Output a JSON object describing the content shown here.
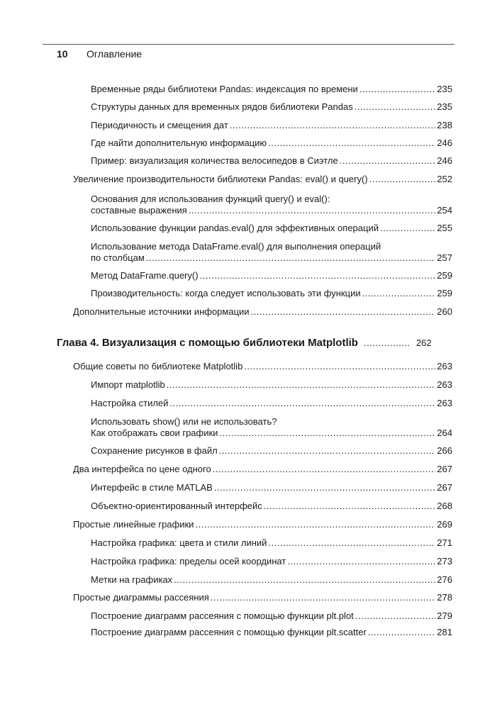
{
  "header": {
    "page_number": "10",
    "running_title": "Оглавление"
  },
  "toc": [
    {
      "level": 2,
      "lines": [
        "Временные ряды библиотеки Pandas: индексация по времени"
      ],
      "page": "235"
    },
    {
      "level": 2,
      "lines": [
        "Структуры данных для временных рядов библиотеки Pandas"
      ],
      "page": "235"
    },
    {
      "level": 2,
      "lines": [
        "Периодичность и смещения дат"
      ],
      "page": "238"
    },
    {
      "level": 2,
      "lines": [
        "Где найти дополнительную информацию"
      ],
      "page": "246"
    },
    {
      "level": 2,
      "lines": [
        "Пример: визуализация количества велосипедов в Сиэтле"
      ],
      "page": "246"
    },
    {
      "level": 1,
      "lines": [
        "Увеличение производительности библиотеки Pandas: eval() и query()"
      ],
      "page": "252"
    },
    {
      "level": 2,
      "lines": [
        "Основания для использования функций query() и eval():",
        "составные выражения"
      ],
      "page": "254"
    },
    {
      "level": 2,
      "lines": [
        "Использование функции pandas.eval() для эффективных операций"
      ],
      "page": "255"
    },
    {
      "level": 2,
      "lines": [
        "Использование метода DataFrame.eval() для выполнения операций",
        "по столбцам"
      ],
      "page": "257"
    },
    {
      "level": 2,
      "lines": [
        "Метод DataFrame.query()"
      ],
      "page": "259"
    },
    {
      "level": 2,
      "lines": [
        "Производительность: когда следует использовать эти функции"
      ],
      "page": "259"
    },
    {
      "level": 1,
      "lines": [
        "Дополнительные источники информации"
      ],
      "page": "260"
    },
    {
      "level": 0,
      "lines": [
        "Глава 4. Визуализация с помощью библиотеки Matplotlib"
      ],
      "page": "262"
    },
    {
      "level": 1,
      "lines": [
        "Общие советы по библиотеке Matplotlib"
      ],
      "page": "263"
    },
    {
      "level": 2,
      "lines": [
        "Импорт matplotlib"
      ],
      "page": "263"
    },
    {
      "level": 2,
      "lines": [
        "Настройка стилей"
      ],
      "page": "263"
    },
    {
      "level": 2,
      "lines": [
        "Использовать show() или не использовать?",
        "Как отображать свои графики"
      ],
      "page": "264"
    },
    {
      "level": 2,
      "lines": [
        "Сохранение рисунков в файл"
      ],
      "page": "266"
    },
    {
      "level": 1,
      "lines": [
        "Два интерфейса по цене одного"
      ],
      "page": "267"
    },
    {
      "level": 2,
      "lines": [
        "Интерфейс в стиле MATLAB"
      ],
      "page": "267"
    },
    {
      "level": 2,
      "lines": [
        "Объектно-ориентированный интерфейс"
      ],
      "page": "268"
    },
    {
      "level": 1,
      "lines": [
        "Простые линейные графики"
      ],
      "page": "269"
    },
    {
      "level": 2,
      "lines": [
        "Настройка графика: цвета и стили линий"
      ],
      "page": "271"
    },
    {
      "level": 2,
      "lines": [
        "Настройка графика: пределы осей координат"
      ],
      "page": "273"
    },
    {
      "level": 2,
      "lines": [
        "Метки на графиках"
      ],
      "page": "276"
    },
    {
      "level": 1,
      "lines": [
        "Простые диаграммы рассеяния"
      ],
      "page": "278"
    },
    {
      "level": 2,
      "lines": [
        "Построение диаграмм рассеяния с помощью функции plt.plot"
      ],
      "page": "279"
    },
    {
      "level": 2,
      "lines": [
        "Построение диаграмм рассеяния с помощью функции plt.scatter"
      ],
      "page": "281"
    }
  ]
}
